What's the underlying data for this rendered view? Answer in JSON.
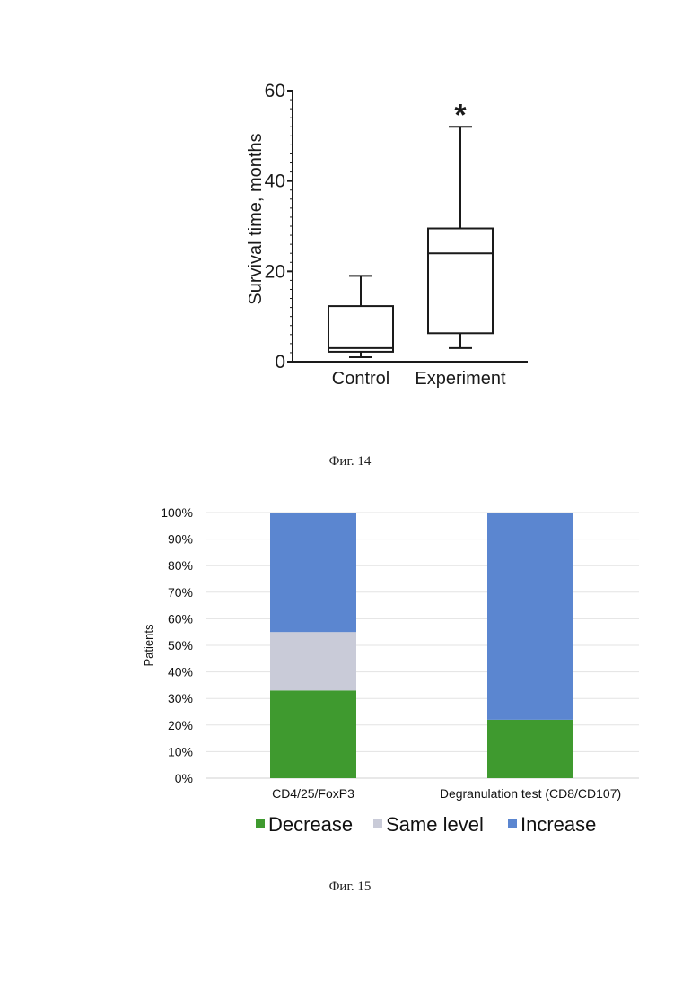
{
  "figures": [
    {
      "caption": "Фиг. 14"
    },
    {
      "caption": "Фиг. 15"
    }
  ],
  "chart_data": [
    {
      "type": "box",
      "title": "",
      "xlabel": "",
      "ylabel": "Survival time, months",
      "ylim": [
        0,
        60
      ],
      "yticks": [
        "0",
        "20",
        "40",
        "60"
      ],
      "categories": [
        "Control",
        "Experiment"
      ],
      "boxes": [
        {
          "name": "Control",
          "min": 1,
          "q1": 2.2,
          "median": 3,
          "q3": 12.3,
          "max": 19
        },
        {
          "name": "Experiment",
          "min": 3,
          "q1": 6.3,
          "median": 24,
          "q3": 29.5,
          "max": 52
        }
      ],
      "annotations": [
        {
          "category": "Experiment",
          "text": "*"
        }
      ],
      "line_color": "#1a1a1a"
    },
    {
      "type": "bar",
      "stacked": true,
      "title": "",
      "xlabel": "",
      "ylabel": "Patients",
      "ylim": [
        0,
        100
      ],
      "yticks": [
        "0%",
        "10%",
        "20%",
        "30%",
        "40%",
        "50%",
        "60%",
        "70%",
        "80%",
        "90%",
        "100%"
      ],
      "categories": [
        "CD4/25/FoxP3",
        "Degranulation test (CD8/CD107)"
      ],
      "series": [
        {
          "name": "Decrease",
          "values": [
            33,
            22
          ],
          "color": "#3f9a2f"
        },
        {
          "name": "Same level",
          "values": [
            22,
            0
          ],
          "color": "#c9cbd8"
        },
        {
          "name": "Increase",
          "values": [
            45,
            78
          ],
          "color": "#5b86d0"
        }
      ],
      "grid": true,
      "legend_position": "bottom"
    }
  ]
}
